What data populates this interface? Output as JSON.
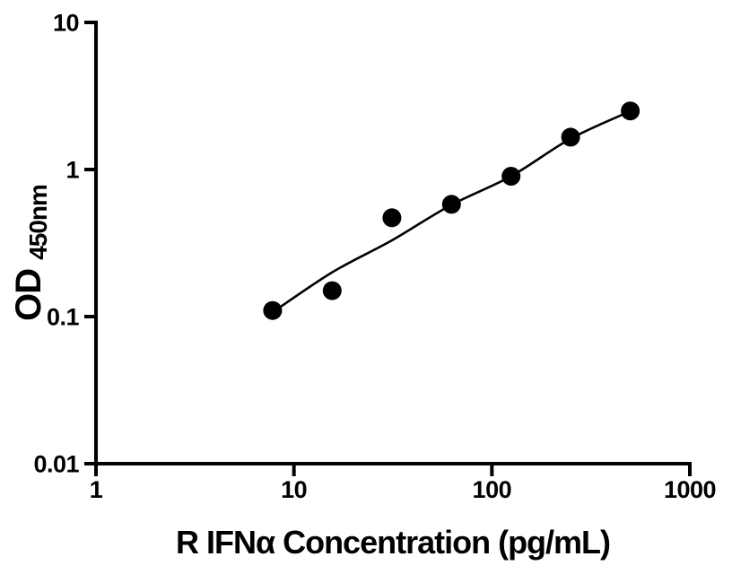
{
  "colors": {
    "background": "#ffffff",
    "ink": "#000000"
  },
  "chart_data": {
    "type": "scatter",
    "title": "",
    "xlabel": "R IFNα Concentration (pg/mL)",
    "ylabel": "OD",
    "ylabel_subscript": "450nm",
    "x_scale": "log",
    "y_scale": "log",
    "xlim": [
      1,
      1000
    ],
    "ylim": [
      0.01,
      10
    ],
    "grid": false,
    "legend": "none",
    "x_ticks": [
      {
        "value": 1,
        "label": "1"
      },
      {
        "value": 10,
        "label": "10"
      },
      {
        "value": 100,
        "label": "100"
      },
      {
        "value": 1000,
        "label": "1000"
      }
    ],
    "y_ticks": [
      {
        "value": 10,
        "label": "10"
      },
      {
        "value": 1,
        "label": "1"
      },
      {
        "value": 0.1,
        "label": "0.1"
      },
      {
        "value": 0.01,
        "label": "0.01"
      }
    ],
    "series": [
      {
        "name": "standard-points",
        "type": "scatter",
        "marker": "filled-circle",
        "color": "#000000",
        "x": [
          7.8,
          15.6,
          31.25,
          62.5,
          125,
          250,
          500
        ],
        "y": [
          0.11,
          0.15,
          0.47,
          0.58,
          0.9,
          1.66,
          2.5
        ]
      },
      {
        "name": "fit-line",
        "type": "line",
        "color": "#000000",
        "x": [
          7.8,
          15.6,
          31.25,
          62.5,
          125,
          250,
          500
        ],
        "y": [
          0.107,
          0.2,
          0.33,
          0.575,
          0.9,
          1.62,
          2.49
        ]
      }
    ]
  }
}
